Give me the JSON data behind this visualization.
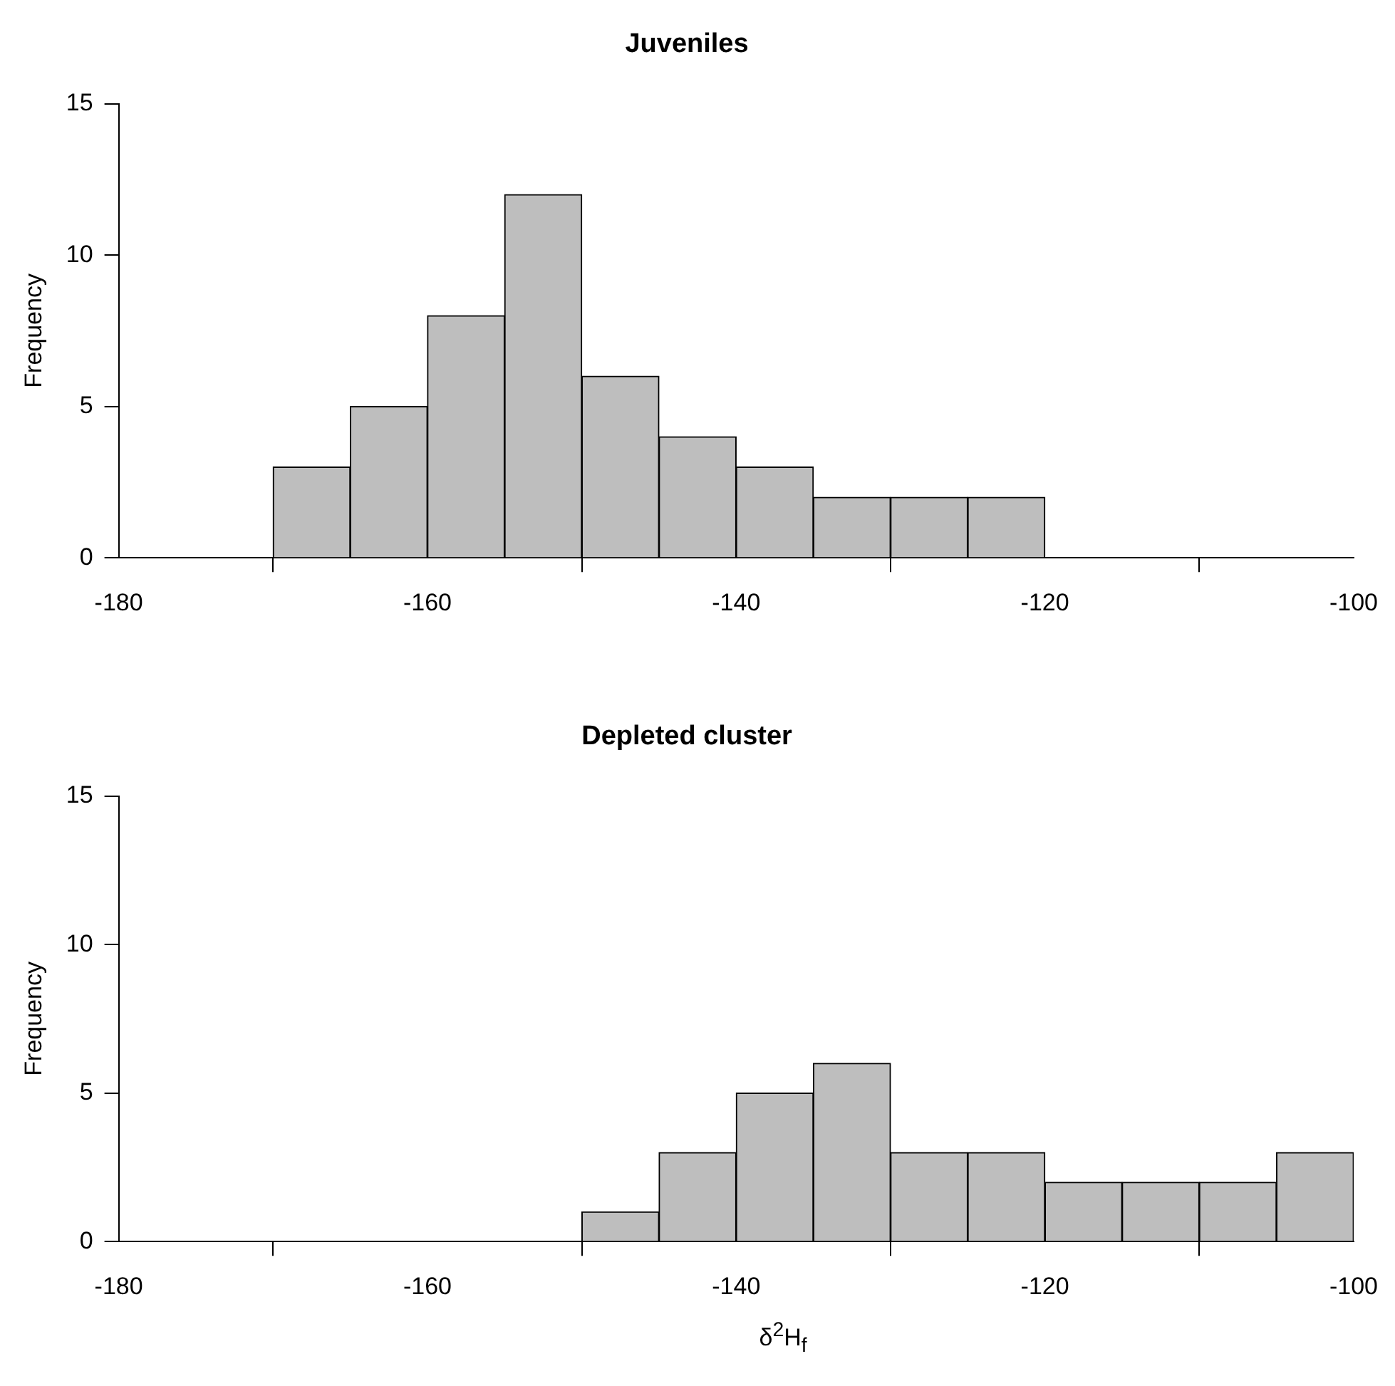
{
  "chart_data": [
    {
      "type": "histogram",
      "title": "Juveniles",
      "ylabel": "Frequency",
      "bins": [
        -170,
        -165,
        -160,
        -155,
        -150,
        -145,
        -140,
        -135,
        -130,
        -125,
        -120
      ],
      "values": [
        3,
        5,
        8,
        12,
        6,
        4,
        3,
        2,
        2,
        2
      ],
      "color": "#bebebe",
      "xlim": [
        -180,
        -100
      ],
      "xticks": [
        -180,
        -160,
        -140,
        -120,
        -100
      ],
      "ylim": [
        0,
        15
      ],
      "yticks": [
        0,
        5,
        10,
        15
      ]
    },
    {
      "type": "histogram",
      "title": "Depleted cluster",
      "ylabel": "Frequency",
      "xlabel": "δ$^{2}$H$_{f}$",
      "bins": [
        -150,
        -145,
        -140,
        -135,
        -130,
        -125,
        -120,
        -115,
        -110,
        -105,
        -100
      ],
      "values": [
        1,
        3,
        5,
        6,
        3,
        3,
        2,
        2,
        2,
        3
      ],
      "color": "#bebebe",
      "xlim": [
        -180,
        -100
      ],
      "xticks": [
        -180,
        -160,
        -140,
        -120,
        -100
      ],
      "ylim": [
        0,
        15
      ],
      "yticks": [
        0,
        5,
        10,
        15
      ]
    }
  ]
}
